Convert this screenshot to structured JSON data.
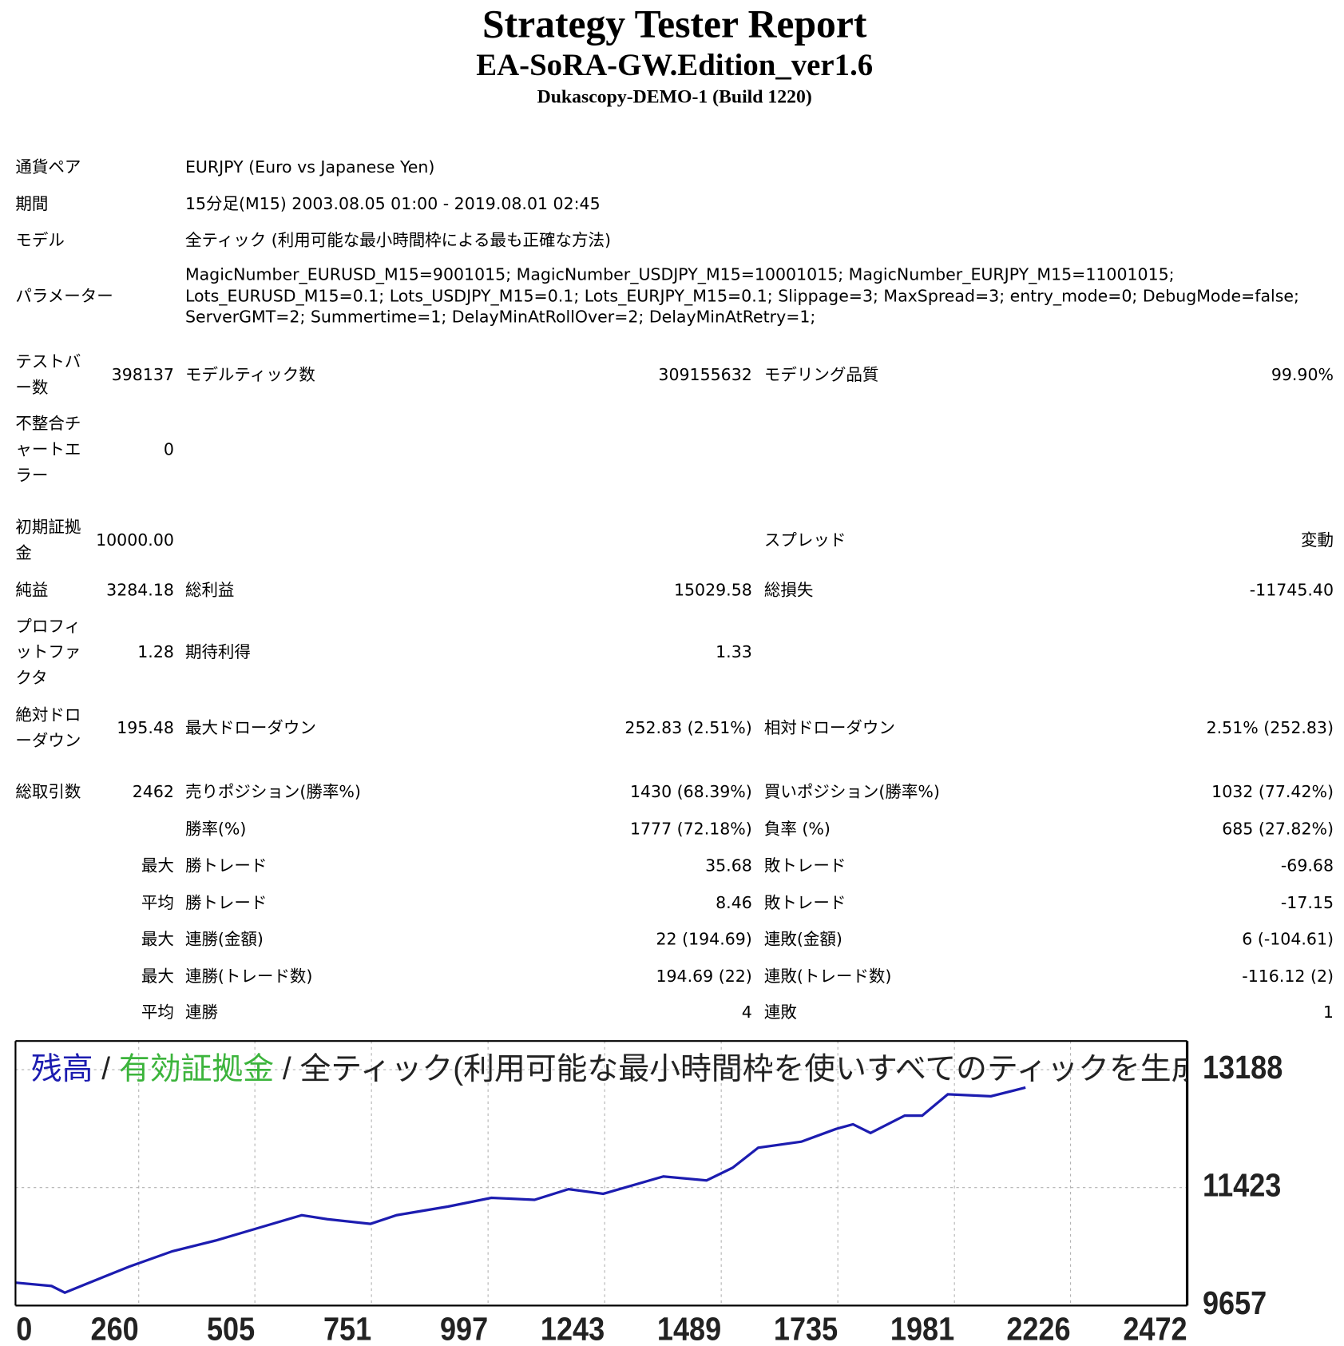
{
  "header": {
    "title": "Strategy Tester Report",
    "subtitle": "EA-SoRA-GW.Edition_ver1.6",
    "server": "Dukascopy-DEMO-1 (Build 1220)"
  },
  "info": [
    {
      "label": "通貨ペア",
      "value": "EURJPY (Euro vs Japanese Yen)"
    },
    {
      "label": "期間",
      "value": "15分足(M15) 2003.08.05 01:00 - 2019.08.01 02:45"
    },
    {
      "label": "モデル",
      "value": "全ティック (利用可能な最小時間枠による最も正確な方法)"
    },
    {
      "label": "パラメーター",
      "value": "MagicNumber_EURUSD_M15=9001015; MagicNumber_USDJPY_M15=10001015; MagicNumber_EURJPY_M15=11001015; Lots_EURUSD_M15=0.1; Lots_USDJPY_M15=0.1; Lots_EURJPY_M15=0.1; Slippage=3; MaxSpread=3; entry_mode=0; DebugMode=false; ServerGMT=2; Summertime=1; DelayMinAtRollOver=2; DelayMinAtRetry=1;"
    }
  ],
  "stats": [
    {
      "label": "テストバー数",
      "value": "398137",
      "label2": "モデルティック数",
      "value2": "309155632",
      "label3": "モデリング品質",
      "value3": "99.90%"
    },
    {
      "label": "不整合チャートエラー",
      "value": "0"
    },
    {
      "label": "初期証拠金",
      "value": "10000.00",
      "label3": "スプレッド",
      "value3": "変動"
    },
    {
      "label": "純益",
      "value": "3284.18",
      "label2": "総利益",
      "value2": "15029.58",
      "label3": "総損失",
      "value3": "-11745.40"
    },
    {
      "label": "プロフィットファクタ",
      "value": "1.28",
      "label2": "期待利得",
      "value2": "1.33"
    },
    {
      "label": "絶対ドローダウン",
      "value": "195.48",
      "label2": "最大ドローダウン",
      "value2": "252.83 (2.51%)",
      "label3": "相対ドローダウン",
      "value3": "2.51% (252.83)"
    },
    {
      "label": "総取引数",
      "value": "2462",
      "label2": "売りポジション(勝率%)",
      "value2": "1430 (68.39%)",
      "label3": "買いポジション(勝率%)",
      "value3": "1032 (77.42%)"
    },
    {
      "label2": "勝率(%)",
      "value2": "1777 (72.18%)",
      "label3": "負率 (%)",
      "value3": "685 (27.82%)"
    },
    {
      "value": "最大",
      "label2": "勝トレード",
      "value2": "35.68",
      "label3": "敗トレード",
      "value3": "-69.68"
    },
    {
      "value": "平均",
      "label2": "勝トレード",
      "value2": "8.46",
      "label3": "敗トレード",
      "value3": "-17.15"
    },
    {
      "value": "最大",
      "label2": "連勝(金額)",
      "value2": "22 (194.69)",
      "label3": "連敗(金額)",
      "value3": "6 (-104.61)"
    },
    {
      "value": "最大",
      "label2": "連勝(トレード数)",
      "value2": "194.69 (22)",
      "label3": "連敗(トレード数)",
      "value3": "-116.12 (2)"
    },
    {
      "value": "平均",
      "label2": "連勝",
      "value2": "4",
      "label3": "連敗",
      "value3": "1"
    }
  ],
  "chart_data": {
    "type": "line",
    "series": [
      {
        "name": "残高",
        "color": "#1c1cb0",
        "values": [
          10000,
          9950,
          9850,
          9980,
          10240,
          10470,
          10630,
          10820,
          11010,
          10950,
          10880,
          11010,
          11140,
          11270,
          11240,
          11400,
          11330,
          11590,
          11530,
          11720,
          12020,
          12110,
          12300,
          12370,
          12240,
          12500,
          12500,
          12820,
          12790,
          12920
        ]
      }
    ],
    "x": [
      0,
      76,
      104,
      149,
      240,
      331,
      422,
      513,
      604,
      658,
      749,
      804,
      913,
      1004,
      1095,
      1167,
      1240,
      1367,
      1458,
      1513,
      1567,
      1658,
      1731,
      1767,
      1804,
      1876,
      1913,
      1967,
      2058,
      2131
    ],
    "legend_more": [
      {
        "text": "有効証拠金",
        "color": "#3cb43c"
      },
      {
        "text": "全ティック(利用可能な最小時間枠を使いすべてのティックを生成",
        "color": "#222222"
      }
    ],
    "separator": "/",
    "xlim": [
      0,
      2472
    ],
    "xticks": [
      0,
      260,
      505,
      751,
      997,
      1243,
      1489,
      1735,
      1981,
      2226,
      2472
    ],
    "ylim": [
      9657,
      13617
    ],
    "yticks": [
      9657,
      11423,
      13188
    ],
    "grid": true
  }
}
